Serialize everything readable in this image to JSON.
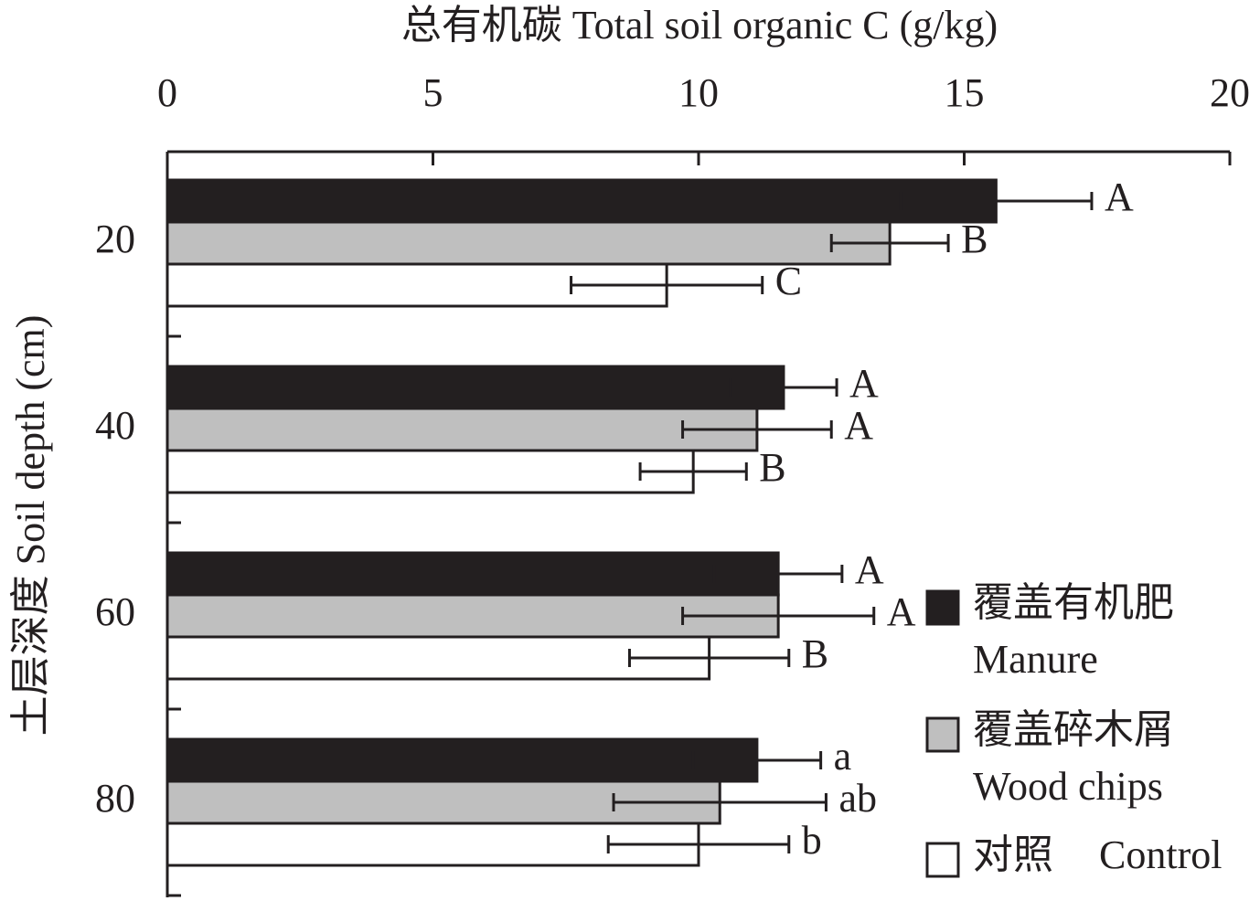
{
  "chart_data": {
    "type": "barh",
    "xlabel": "总有机碳 Total soil organic C (g/kg)",
    "ylabel": "土层深度 Soil depth (cm)",
    "categories": [
      "20",
      "40",
      "60",
      "80"
    ],
    "xlim": [
      0,
      20
    ],
    "xticks": [
      0,
      5,
      10,
      15,
      20
    ],
    "series": [
      {
        "name": "覆盖有机肥",
        "name_en": "Manure",
        "color": "#231f20",
        "values": [
          15.6,
          11.6,
          11.5,
          11.1
        ],
        "errors": [
          1.8,
          1.0,
          1.2,
          1.2
        ],
        "letters": [
          "A",
          "A",
          "A",
          "a"
        ]
      },
      {
        "name": "覆盖碎木屑",
        "name_en": "Wood chips",
        "color": "#bfbfbf",
        "values": [
          13.6,
          11.1,
          11.5,
          10.4
        ],
        "errors": [
          1.1,
          1.4,
          1.8,
          2.0
        ],
        "letters": [
          "B",
          "A",
          "A",
          "ab"
        ]
      },
      {
        "name": "对照",
        "name_en": "Control",
        "color": "#ffffff",
        "values": [
          9.4,
          9.9,
          10.2,
          10.0
        ],
        "errors": [
          1.8,
          1.0,
          1.5,
          1.7
        ],
        "letters": [
          "C",
          "B",
          "B",
          "b"
        ]
      }
    ]
  }
}
